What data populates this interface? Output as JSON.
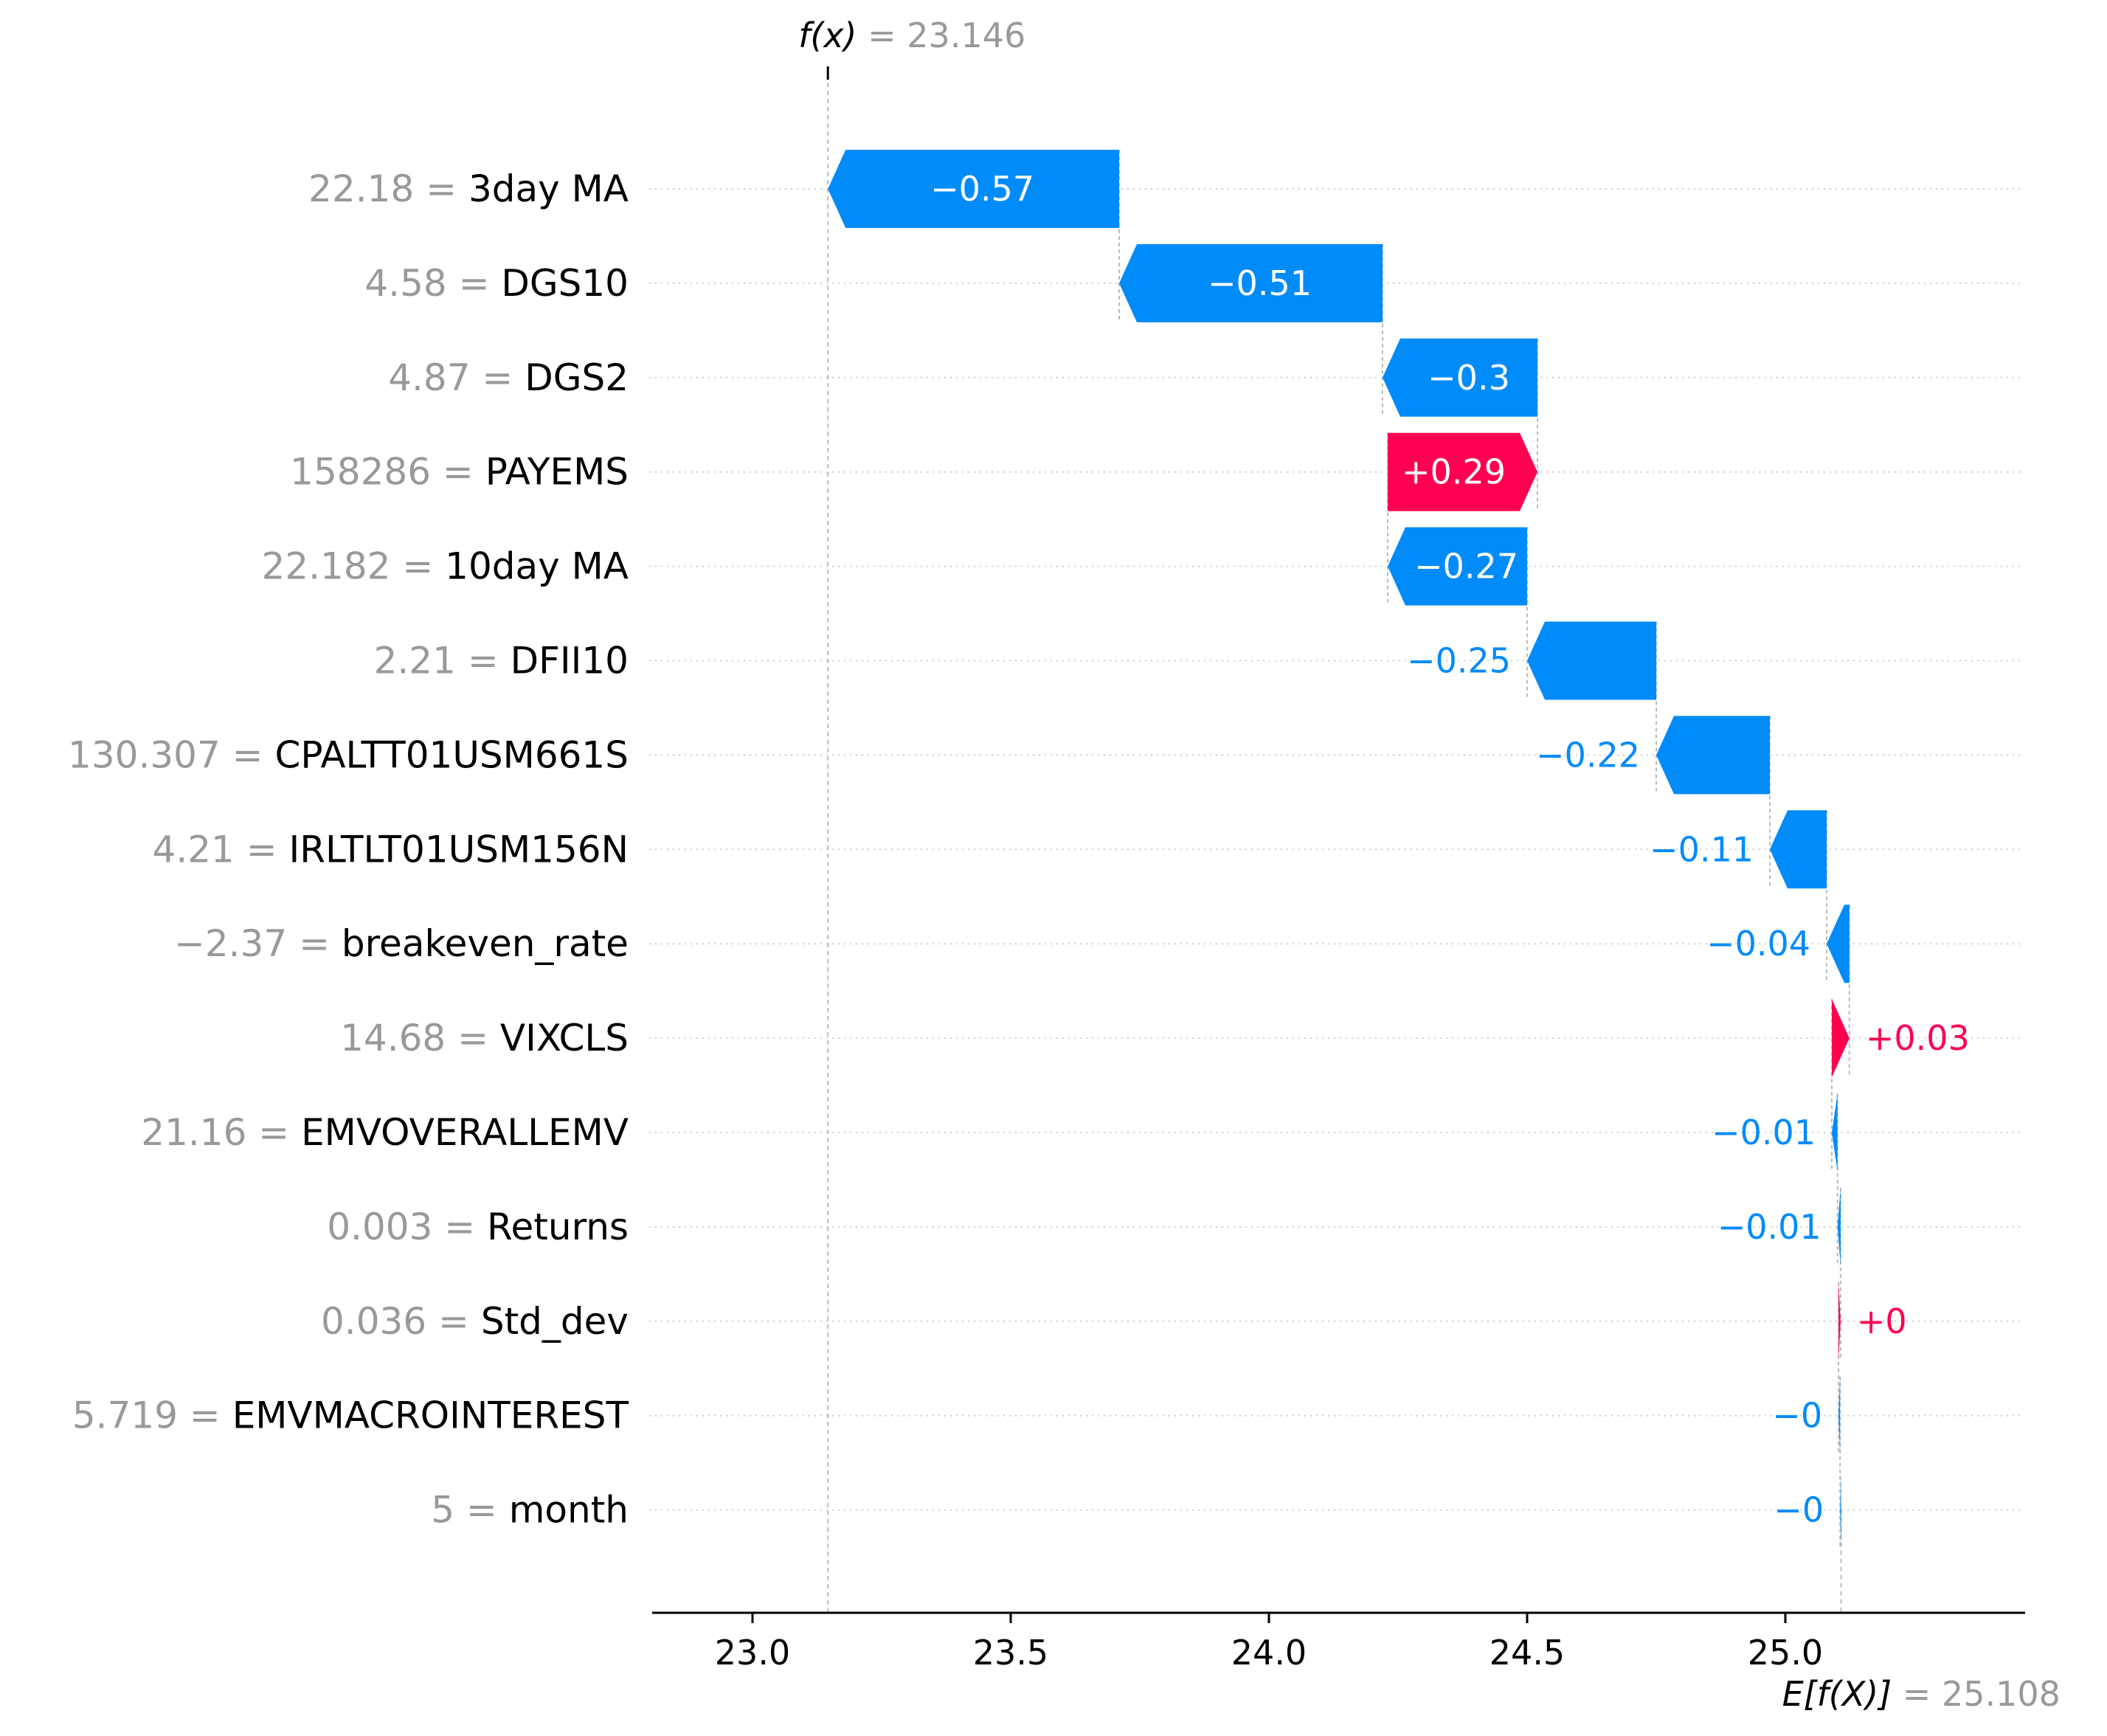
{
  "chart_data": {
    "type": "waterfall",
    "fx": {
      "label": "f(x)",
      "value": "23.146"
    },
    "base": {
      "label": "E[f(X)]",
      "value": "25.108"
    },
    "x_ticks": [
      "23.0",
      "23.5",
      "24.0",
      "24.5",
      "25.0"
    ],
    "x_values": [
      23.0,
      23.5,
      24.0,
      24.5,
      25.0
    ],
    "xlim": [
      22.8,
      25.36
    ],
    "features": [
      {
        "value": "22.18",
        "name": "3day MA",
        "shap": -0.57,
        "label": "−0.57"
      },
      {
        "value": "4.58",
        "name": "DGS10",
        "shap": -0.51,
        "label": "−0.51"
      },
      {
        "value": "4.87",
        "name": "DGS2",
        "shap": -0.3,
        "label": "−0.3"
      },
      {
        "value": "158286",
        "name": "PAYEMS",
        "shap": 0.29,
        "label": "+0.29"
      },
      {
        "value": "22.182",
        "name": "10day MA",
        "shap": -0.27,
        "label": "−0.27"
      },
      {
        "value": "2.21",
        "name": "DFII10",
        "shap": -0.25,
        "label": "−0.25"
      },
      {
        "value": "130.307",
        "name": "CPALTT01USM661S",
        "shap": -0.22,
        "label": "−0.22"
      },
      {
        "value": "4.21",
        "name": "IRLTLT01USM156N",
        "shap": -0.11,
        "label": "−0.11"
      },
      {
        "value": "−2.37",
        "name": "breakeven_rate",
        "shap": -0.044,
        "label": "−0.04"
      },
      {
        "value": "14.68",
        "name": "VIXCLS",
        "shap": 0.034,
        "label": "+0.03"
      },
      {
        "value": "21.16",
        "name": "EMVOVERALLEMV",
        "shap": -0.011,
        "label": "−0.01"
      },
      {
        "value": "0.003",
        "name": "Returns",
        "shap": -0.006,
        "label": "−0.01"
      },
      {
        "value": "0.036",
        "name": "Std_dev",
        "shap": 0.004,
        "label": "+0"
      },
      {
        "value": "5.719",
        "name": "EMVMACROINTEREST",
        "shap": -0.003,
        "label": "−0"
      },
      {
        "value": "5",
        "name": "month",
        "shap": -0.002,
        "label": "−0"
      }
    ],
    "colors": {
      "positive": "#ff0051",
      "negative": "#008bfb",
      "muted": "#999999",
      "grid": "#cccccc"
    }
  }
}
